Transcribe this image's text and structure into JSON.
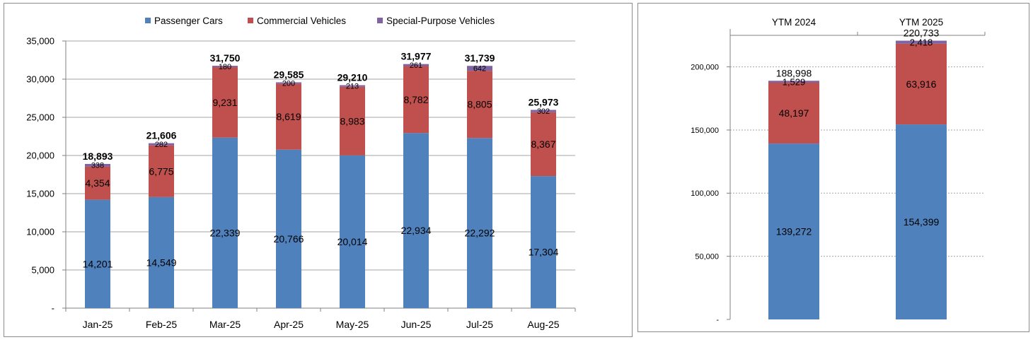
{
  "colors": {
    "passenger": "#4f81bd",
    "commercial": "#c0504d",
    "special": "#8064a2",
    "axis": "#808080",
    "grid": "#a6a6a6"
  },
  "chart_data": [
    {
      "type": "bar",
      "stacked": true,
      "categories": [
        "Jan-25",
        "Feb-25",
        "Mar-25",
        "Apr-25",
        "May-25",
        "Jun-25",
        "Jul-25",
        "Aug-25"
      ],
      "series": [
        {
          "name": "Passenger Cars",
          "values": [
            14201,
            14549,
            22339,
            20766,
            20014,
            22934,
            22292,
            17304
          ]
        },
        {
          "name": "Commercial Vehicles",
          "values": [
            4354,
            6775,
            9231,
            8619,
            8983,
            8782,
            8805,
            8367
          ]
        },
        {
          "name": "Special-Purpose Vehicles",
          "values": [
            338,
            282,
            180,
            200,
            213,
            261,
            642,
            302
          ]
        }
      ],
      "totals": [
        18893,
        21606,
        31750,
        29585,
        29210,
        31977,
        31739,
        25973
      ],
      "value_labels": {
        "series": [
          [
            "14,201",
            "14,549",
            "22,339",
            "20,766",
            "20,014",
            "22,934",
            "22,292",
            "17,304"
          ],
          [
            "4,354",
            "6,775",
            "9,231",
            "8,619",
            "8,983",
            "8,782",
            "8,805",
            "8,367"
          ],
          [
            "338",
            "282",
            "180",
            "200",
            "213",
            "261",
            "642",
            "302"
          ]
        ],
        "totals": [
          "18,893",
          "21,606",
          "31,750",
          "29,585",
          "29,210",
          "31,977",
          "31,739",
          "25,973"
        ]
      },
      "ylim": [
        0,
        35000
      ],
      "yticks": [
        0,
        5000,
        10000,
        15000,
        20000,
        25000,
        30000,
        35000
      ],
      "ytick_labels": [
        "-",
        "5,000",
        "10,000",
        "15,000",
        "20,000",
        "25,000",
        "30,000",
        "35,000"
      ],
      "grid": true,
      "legend_position": "top"
    },
    {
      "type": "bar",
      "stacked": true,
      "categories": [
        "YTM 2024",
        "YTM 2025"
      ],
      "series": [
        {
          "values": [
            139272,
            154399
          ]
        },
        {
          "values": [
            48197,
            63916
          ]
        },
        {
          "values": [
            1529,
            2418
          ]
        }
      ],
      "totals": [
        188998,
        220733
      ],
      "value_labels": {
        "series": [
          [
            "139,272",
            "154,399"
          ],
          [
            "48,197",
            "63,916"
          ],
          [
            "1,529",
            "2,418"
          ]
        ],
        "totals": [
          "188,998",
          "220,733"
        ]
      },
      "ylim": [
        0,
        230000
      ],
      "yticks": [
        0,
        50000,
        100000,
        150000,
        200000
      ],
      "ytick_labels": [
        "-",
        "50,000",
        "100,000",
        "150,000",
        "200,000"
      ],
      "grid": true,
      "category_axis_position": "top"
    }
  ]
}
